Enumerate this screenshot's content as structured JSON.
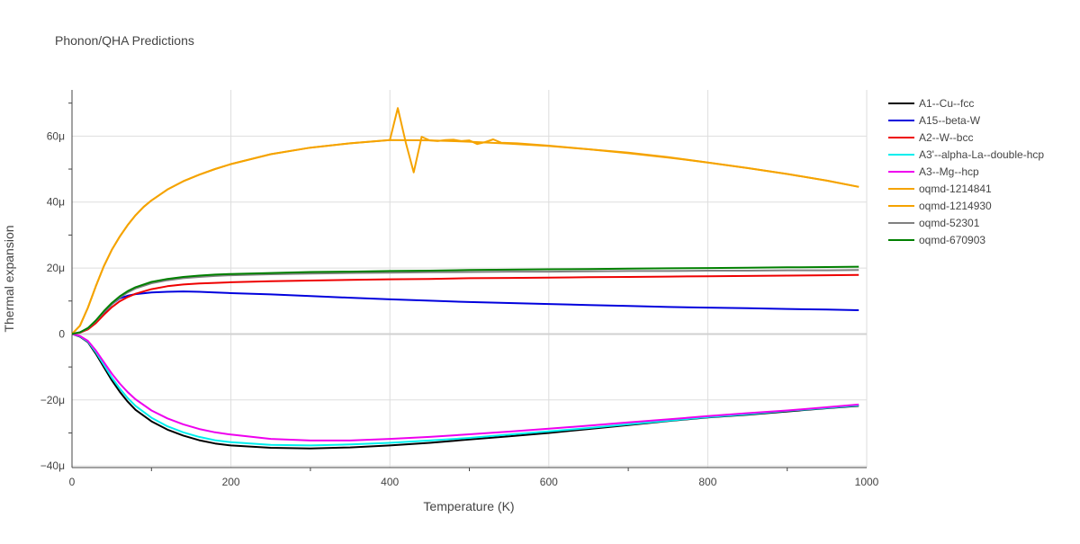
{
  "chart_data": {
    "type": "line",
    "title": "Phonon/QHA Predictions",
    "xlabel": "Temperature (K)",
    "ylabel": "Thermal expansion",
    "xlim": [
      0,
      1000
    ],
    "ylim": [
      -40.5,
      74
    ],
    "x_ticks": [
      0,
      200,
      400,
      600,
      800,
      1000
    ],
    "x_tick_labels": [
      "0",
      "200",
      "400",
      "600",
      "800",
      "1000"
    ],
    "y_ticks": [
      -40,
      -20,
      0,
      20,
      40,
      60
    ],
    "y_tick_labels": [
      "−40μ",
      "−20μ",
      "0",
      "20μ",
      "40μ",
      "60μ"
    ],
    "y_unit": "μ (×1e-6)",
    "grid": true,
    "legend_position": "top-right",
    "series": [
      {
        "name": "A1--Cu--fcc",
        "color": "#000000",
        "x": [
          0,
          10,
          20,
          30,
          40,
          50,
          60,
          70,
          80,
          100,
          120,
          140,
          160,
          180,
          200,
          250,
          300,
          350,
          400,
          450,
          500,
          550,
          600,
          650,
          700,
          750,
          800,
          850,
          900,
          950,
          990
        ],
        "y": [
          0,
          -0.8,
          -2.5,
          -6,
          -10,
          -14,
          -17.5,
          -20.5,
          -23,
          -26.5,
          -29,
          -30.8,
          -32.2,
          -33.2,
          -33.8,
          -34.5,
          -34.7,
          -34.4,
          -33.8,
          -33,
          -32,
          -31,
          -30,
          -28.8,
          -27.6,
          -26.4,
          -25.3,
          -24.5,
          -23.5,
          -22.5,
          -21.8
        ]
      },
      {
        "name": "A15--beta-W",
        "color": "#0000dd",
        "x": [
          0,
          10,
          20,
          30,
          40,
          50,
          60,
          70,
          80,
          100,
          120,
          140,
          160,
          180,
          200,
          250,
          300,
          350,
          400,
          450,
          500,
          550,
          600,
          650,
          700,
          750,
          800,
          850,
          900,
          950,
          990
        ],
        "y": [
          0,
          0.5,
          1.5,
          3.5,
          6.5,
          9,
          10.8,
          11.6,
          12.1,
          12.6,
          12.8,
          12.9,
          12.8,
          12.6,
          12.4,
          12,
          11.5,
          11,
          10.5,
          10.1,
          9.7,
          9.4,
          9.1,
          8.8,
          8.5,
          8.2,
          8,
          7.8,
          7.6,
          7.4,
          7.2
        ]
      },
      {
        "name": "A2--W--bcc",
        "color": "#ee0000",
        "x": [
          0,
          10,
          20,
          30,
          40,
          50,
          60,
          70,
          80,
          100,
          120,
          140,
          160,
          180,
          200,
          250,
          300,
          350,
          400,
          450,
          500,
          550,
          600,
          650,
          700,
          750,
          800,
          850,
          900,
          950,
          990
        ],
        "y": [
          0,
          0.4,
          1.4,
          3.3,
          5.8,
          8.1,
          9.9,
          11.2,
          12.2,
          13.6,
          14.5,
          15,
          15.3,
          15.5,
          15.7,
          16,
          16.2,
          16.4,
          16.6,
          16.7,
          16.9,
          17,
          17.1,
          17.2,
          17.3,
          17.4,
          17.5,
          17.6,
          17.7,
          17.8,
          17.9
        ]
      },
      {
        "name": "A3'--alpha-La--double-hcp",
        "color": "#00eeee",
        "x": [
          0,
          10,
          20,
          30,
          40,
          50,
          60,
          70,
          80,
          100,
          120,
          140,
          160,
          180,
          200,
          250,
          300,
          350,
          400,
          450,
          500,
          550,
          600,
          650,
          700,
          750,
          800,
          850,
          900,
          950,
          990
        ],
        "y": [
          0,
          -0.7,
          -2.3,
          -5.5,
          -9.3,
          -13.2,
          -16.5,
          -19.4,
          -21.8,
          -25.4,
          -28,
          -29.8,
          -31.2,
          -32.2,
          -32.8,
          -33.6,
          -33.8,
          -33.5,
          -33,
          -32.3,
          -31.5,
          -30.5,
          -29.5,
          -28.5,
          -27.4,
          -26.3,
          -25.2,
          -24.3,
          -23.3,
          -22.4,
          -21.6
        ]
      },
      {
        "name": "A3--Mg--hcp",
        "color": "#ee00ee",
        "x": [
          0,
          10,
          20,
          30,
          40,
          50,
          60,
          70,
          80,
          100,
          120,
          140,
          160,
          180,
          200,
          250,
          300,
          350,
          400,
          450,
          500,
          550,
          600,
          650,
          700,
          750,
          800,
          850,
          900,
          950,
          990
        ],
        "y": [
          0,
          -0.6,
          -2.1,
          -5,
          -8.5,
          -12,
          -15,
          -17.6,
          -19.8,
          -23.2,
          -25.6,
          -27.4,
          -28.8,
          -29.8,
          -30.5,
          -31.8,
          -32.3,
          -32.3,
          -31.8,
          -31.2,
          -30.4,
          -29.6,
          -28.7,
          -27.8,
          -26.8,
          -25.9,
          -24.9,
          -24,
          -23.2,
          -22.2,
          -21.4
        ]
      },
      {
        "name": "oqmd-1214841",
        "color": "#f5a300",
        "x": [
          0,
          10,
          20,
          30,
          40,
          50,
          60,
          70,
          80,
          90,
          100,
          120,
          140,
          160,
          180,
          200,
          250,
          300,
          350,
          400,
          450,
          500,
          550,
          600,
          650,
          700,
          750,
          800,
          850,
          900,
          950,
          990
        ],
        "y": [
          0,
          2.5,
          8,
          14.5,
          20.5,
          25.5,
          29.5,
          33,
          36,
          38.5,
          40.5,
          43.8,
          46.3,
          48.3,
          50,
          51.5,
          54.5,
          56.5,
          57.8,
          58.8,
          58.7,
          58.3,
          57.7,
          57,
          56,
          55,
          53.6,
          52,
          50.3,
          48.5,
          46.5,
          44.6
        ]
      },
      {
        "name": "oqmd-1214930",
        "color": "#f5a300",
        "x": [
          0,
          10,
          20,
          30,
          40,
          50,
          60,
          70,
          80,
          90,
          100,
          120,
          140,
          160,
          180,
          200,
          250,
          300,
          350,
          400,
          410,
          420,
          430,
          440,
          450,
          460,
          470,
          480,
          490,
          500,
          510,
          520,
          530,
          540,
          560,
          600,
          650,
          700,
          750,
          800,
          850,
          900,
          950,
          990
        ],
        "y": [
          0,
          2.5,
          8,
          14.5,
          20.5,
          25.5,
          29.5,
          33,
          36,
          38.5,
          40.5,
          43.8,
          46.3,
          48.3,
          50,
          51.5,
          54.5,
          56.5,
          57.8,
          58.8,
          68.5,
          58,
          49,
          59.8,
          58.7,
          58.5,
          58.8,
          58.9,
          58.5,
          58.7,
          57.6,
          58.2,
          59,
          58,
          57.8,
          57.1,
          56,
          54.8,
          53.5,
          52,
          50.3,
          48.5,
          46.5,
          44.6
        ]
      },
      {
        "name": "oqmd-52301",
        "color": "#808080",
        "x": [
          0,
          10,
          20,
          30,
          40,
          50,
          60,
          70,
          80,
          100,
          120,
          140,
          160,
          180,
          200,
          250,
          300,
          350,
          400,
          450,
          500,
          550,
          600,
          650,
          700,
          750,
          800,
          850,
          900,
          950,
          990
        ],
        "y": [
          0,
          0.5,
          1.7,
          3.9,
          6.6,
          9,
          11,
          12.6,
          13.8,
          15.4,
          16.3,
          16.9,
          17.3,
          17.6,
          17.8,
          18.1,
          18.3,
          18.5,
          18.6,
          18.7,
          18.8,
          18.9,
          18.9,
          19,
          19.1,
          19.1,
          19.2,
          19.2,
          19.3,
          19.3,
          19.4
        ]
      },
      {
        "name": "oqmd-670903",
        "color": "#008000",
        "x": [
          0,
          10,
          20,
          30,
          40,
          50,
          60,
          70,
          80,
          100,
          120,
          140,
          160,
          180,
          200,
          250,
          300,
          350,
          400,
          450,
          500,
          550,
          600,
          650,
          700,
          750,
          800,
          850,
          900,
          950,
          990
        ],
        "y": [
          0,
          0.5,
          1.8,
          4.1,
          6.9,
          9.4,
          11.4,
          13,
          14.2,
          15.8,
          16.7,
          17.3,
          17.7,
          18,
          18.2,
          18.5,
          18.8,
          18.9,
          19.1,
          19.2,
          19.4,
          19.5,
          19.6,
          19.7,
          19.8,
          19.9,
          20,
          20.1,
          20.2,
          20.3,
          20.4
        ]
      }
    ]
  }
}
